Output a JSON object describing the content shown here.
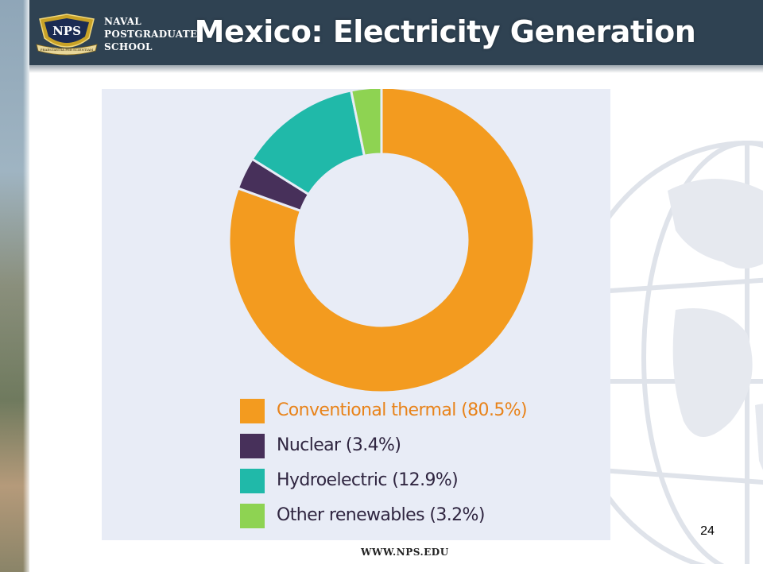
{
  "header": {
    "school_lines": [
      "NAVAL",
      "POSTGRADUATE",
      "SCHOOL"
    ],
    "logo_text": "NPS",
    "logo_motto": "PRAESTANTIA PER SCIENTIAM",
    "title": "Mexico: Electricity Generation"
  },
  "chart_data": {
    "type": "pie",
    "style": "donut",
    "title": "",
    "slices": [
      {
        "label": "Conventional thermal (80.5%)",
        "value": 80.5,
        "color": "#f39b1f"
      },
      {
        "label": "Nuclear (3.4%)",
        "value": 3.4,
        "color": "#47305a"
      },
      {
        "label": "Hydroelectric (12.9%)",
        "value": 12.9,
        "color": "#20b9a9"
      },
      {
        "label": "Other renewables (3.2%)",
        "value": 3.2,
        "color": "#8ed352"
      }
    ],
    "legend_position": "bottom-left",
    "background": "#e8ecf6"
  },
  "footer": {
    "page_number": "24",
    "url": "WWW.NPS.EDU"
  }
}
